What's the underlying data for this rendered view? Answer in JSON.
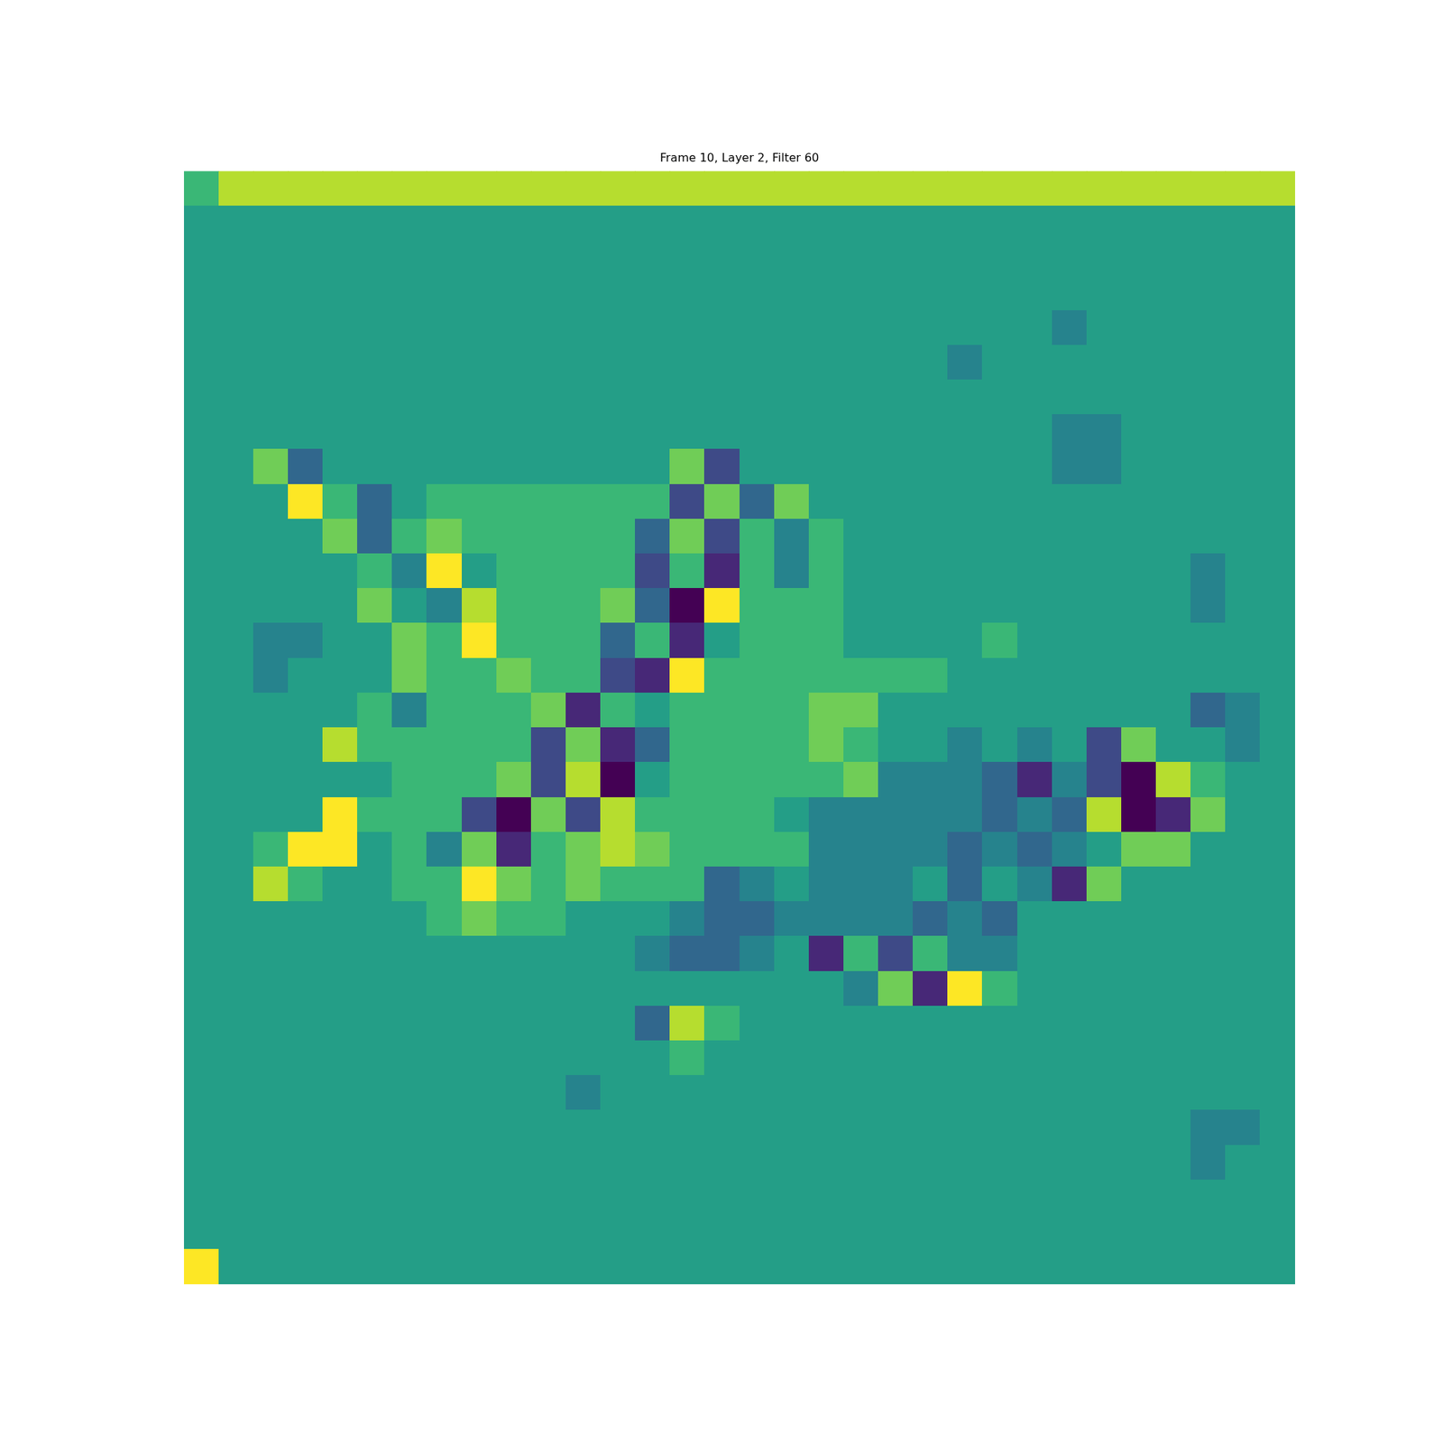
{
  "chart_data": {
    "type": "heatmap",
    "title": "Frame 10, Layer 2, Filter 60",
    "tick_labels": false,
    "grid": false,
    "cells": [
      [
        6,
        8,
        8,
        8,
        8,
        8,
        8,
        8,
        8,
        8,
        8,
        8,
        8,
        8,
        8,
        8,
        8,
        8,
        8,
        8,
        8,
        8,
        8,
        8,
        8,
        8,
        8,
        8,
        8,
        8,
        8,
        8
      ],
      [
        5,
        5,
        5,
        5,
        5,
        5,
        5,
        5,
        5,
        5,
        5,
        5,
        5,
        5,
        5,
        5,
        5,
        5,
        5,
        5,
        5,
        5,
        5,
        5,
        5,
        5,
        5,
        5,
        5,
        5,
        5,
        5
      ],
      [
        5,
        5,
        5,
        5,
        5,
        5,
        5,
        5,
        5,
        5,
        5,
        5,
        5,
        5,
        5,
        5,
        5,
        5,
        5,
        5,
        5,
        5,
        5,
        5,
        5,
        5,
        5,
        5,
        5,
        5,
        5,
        5
      ],
      [
        5,
        5,
        5,
        5,
        5,
        5,
        5,
        5,
        5,
        5,
        5,
        5,
        5,
        5,
        5,
        5,
        5,
        5,
        5,
        5,
        5,
        5,
        5,
        5,
        5,
        5,
        5,
        5,
        5,
        5,
        5,
        5
      ],
      [
        5,
        5,
        5,
        5,
        5,
        5,
        5,
        5,
        5,
        5,
        5,
        5,
        5,
        5,
        5,
        5,
        5,
        5,
        5,
        5,
        5,
        5,
        5,
        5,
        5,
        4,
        5,
        5,
        5,
        5,
        5,
        5
      ],
      [
        5,
        5,
        5,
        5,
        5,
        5,
        5,
        5,
        5,
        5,
        5,
        5,
        5,
        5,
        5,
        5,
        5,
        5,
        5,
        5,
        5,
        5,
        4,
        5,
        5,
        5,
        5,
        5,
        5,
        5,
        5,
        5
      ],
      [
        5,
        5,
        5,
        5,
        5,
        5,
        5,
        5,
        5,
        5,
        5,
        5,
        5,
        5,
        5,
        5,
        5,
        5,
        5,
        5,
        5,
        5,
        5,
        5,
        5,
        5,
        5,
        5,
        5,
        5,
        5,
        5
      ],
      [
        5,
        5,
        5,
        5,
        5,
        5,
        5,
        5,
        5,
        5,
        5,
        5,
        5,
        5,
        5,
        5,
        5,
        5,
        5,
        5,
        5,
        5,
        5,
        5,
        5,
        4,
        4,
        5,
        5,
        5,
        5,
        5
      ],
      [
        5,
        5,
        7,
        3,
        5,
        5,
        5,
        5,
        5,
        5,
        5,
        5,
        5,
        5,
        7,
        2,
        5,
        5,
        5,
        5,
        5,
        5,
        5,
        5,
        5,
        4,
        4,
        5,
        5,
        5,
        5,
        5
      ],
      [
        5,
        5,
        5,
        9,
        6,
        3,
        5,
        6,
        6,
        6,
        6,
        6,
        6,
        6,
        2,
        7,
        3,
        7,
        5,
        5,
        5,
        5,
        5,
        5,
        5,
        5,
        5,
        5,
        5,
        5,
        5,
        5
      ],
      [
        5,
        5,
        5,
        5,
        7,
        3,
        6,
        7,
        6,
        6,
        6,
        6,
        6,
        3,
        7,
        2,
        6,
        4,
        6,
        5,
        5,
        5,
        5,
        5,
        5,
        5,
        5,
        5,
        5,
        5,
        5,
        5
      ],
      [
        5,
        5,
        5,
        5,
        5,
        6,
        4,
        9,
        5,
        6,
        6,
        6,
        6,
        2,
        6,
        1,
        6,
        4,
        6,
        5,
        5,
        5,
        5,
        5,
        5,
        5,
        5,
        5,
        5,
        4,
        5,
        5
      ],
      [
        5,
        5,
        5,
        5,
        5,
        7,
        5,
        4,
        8,
        6,
        6,
        6,
        7,
        3,
        0,
        9,
        6,
        6,
        6,
        5,
        5,
        5,
        5,
        5,
        5,
        5,
        5,
        5,
        5,
        4,
        5,
        5
      ],
      [
        5,
        5,
        4,
        4,
        5,
        5,
        7,
        6,
        9,
        6,
        6,
        6,
        3,
        6,
        1,
        5,
        6,
        6,
        6,
        5,
        5,
        5,
        5,
        6,
        5,
        5,
        5,
        5,
        5,
        5,
        5,
        5
      ],
      [
        5,
        5,
        4,
        5,
        5,
        5,
        7,
        6,
        6,
        7,
        6,
        6,
        2,
        1,
        9,
        6,
        6,
        6,
        6,
        6,
        6,
        6,
        5,
        5,
        5,
        5,
        5,
        5,
        5,
        5,
        5,
        5
      ],
      [
        5,
        5,
        5,
        5,
        5,
        6,
        4,
        6,
        6,
        6,
        7,
        1,
        6,
        5,
        6,
        6,
        6,
        6,
        7,
        7,
        5,
        5,
        5,
        5,
        5,
        5,
        5,
        5,
        5,
        3,
        4,
        5
      ],
      [
        5,
        5,
        5,
        5,
        8,
        6,
        6,
        6,
        6,
        6,
        2,
        7,
        1,
        3,
        6,
        6,
        6,
        6,
        7,
        6,
        5,
        5,
        4,
        5,
        4,
        5,
        2,
        7,
        5,
        5,
        4,
        5
      ],
      [
        5,
        5,
        5,
        5,
        5,
        5,
        6,
        6,
        6,
        7,
        2,
        8,
        0,
        5,
        6,
        6,
        6,
        6,
        6,
        7,
        4,
        4,
        4,
        3,
        1,
        4,
        2,
        0,
        8,
        6,
        5,
        5
      ],
      [
        5,
        5,
        5,
        5,
        9,
        6,
        6,
        6,
        2,
        0,
        7,
        2,
        8,
        6,
        6,
        6,
        6,
        5,
        4,
        4,
        4,
        4,
        4,
        3,
        4,
        3,
        8,
        0,
        1,
        7,
        5,
        5
      ],
      [
        5,
        5,
        6,
        9,
        9,
        5,
        6,
        4,
        7,
        1,
        6,
        7,
        8,
        7,
        6,
        6,
        6,
        6,
        4,
        4,
        4,
        4,
        3,
        4,
        3,
        4,
        5,
        7,
        7,
        5,
        5,
        5
      ],
      [
        5,
        5,
        8,
        6,
        5,
        5,
        6,
        6,
        9,
        7,
        6,
        7,
        6,
        6,
        6,
        3,
        4,
        5,
        4,
        4,
        4,
        5,
        3,
        5,
        4,
        1,
        7,
        5,
        5,
        5,
        5,
        5
      ],
      [
        5,
        5,
        5,
        5,
        5,
        5,
        5,
        6,
        7,
        6,
        6,
        5,
        5,
        5,
        4,
        3,
        3,
        4,
        4,
        4,
        4,
        3,
        4,
        3,
        5,
        5,
        5,
        5,
        5,
        5,
        5,
        5
      ],
      [
        5,
        5,
        5,
        5,
        5,
        5,
        5,
        5,
        5,
        5,
        5,
        5,
        5,
        4,
        3,
        3,
        4,
        5,
        1,
        6,
        2,
        6,
        4,
        4,
        5,
        5,
        5,
        5,
        5,
        5,
        5,
        5
      ],
      [
        5,
        5,
        5,
        5,
        5,
        5,
        5,
        5,
        5,
        5,
        5,
        5,
        5,
        5,
        5,
        5,
        5,
        5,
        5,
        4,
        7,
        1,
        9,
        6,
        5,
        5,
        5,
        5,
        5,
        5,
        5,
        5
      ],
      [
        5,
        5,
        5,
        5,
        5,
        5,
        5,
        5,
        5,
        5,
        5,
        5,
        5,
        3,
        8,
        6,
        5,
        5,
        5,
        5,
        5,
        5,
        5,
        5,
        5,
        5,
        5,
        5,
        5,
        5,
        5,
        5
      ],
      [
        5,
        5,
        5,
        5,
        5,
        5,
        5,
        5,
        5,
        5,
        5,
        5,
        5,
        5,
        6,
        5,
        5,
        5,
        5,
        5,
        5,
        5,
        5,
        5,
        5,
        5,
        5,
        5,
        5,
        5,
        5,
        5
      ],
      [
        5,
        5,
        5,
        5,
        5,
        5,
        5,
        5,
        5,
        5,
        5,
        4,
        5,
        5,
        5,
        5,
        5,
        5,
        5,
        5,
        5,
        5,
        5,
        5,
        5,
        5,
        5,
        5,
        5,
        5,
        5,
        5
      ],
      [
        5,
        5,
        5,
        5,
        5,
        5,
        5,
        5,
        5,
        5,
        5,
        5,
        5,
        5,
        5,
        5,
        5,
        5,
        5,
        5,
        5,
        5,
        5,
        5,
        5,
        5,
        5,
        5,
        5,
        4,
        4,
        5
      ],
      [
        5,
        5,
        5,
        5,
        5,
        5,
        5,
        5,
        5,
        5,
        5,
        5,
        5,
        5,
        5,
        5,
        5,
        5,
        5,
        5,
        5,
        5,
        5,
        5,
        5,
        5,
        5,
        5,
        5,
        4,
        5,
        5
      ],
      [
        5,
        5,
        5,
        5,
        5,
        5,
        5,
        5,
        5,
        5,
        5,
        5,
        5,
        5,
        5,
        5,
        5,
        5,
        5,
        5,
        5,
        5,
        5,
        5,
        5,
        5,
        5,
        5,
        5,
        5,
        5,
        5
      ],
      [
        5,
        5,
        5,
        5,
        5,
        5,
        5,
        5,
        5,
        5,
        5,
        5,
        5,
        5,
        5,
        5,
        5,
        5,
        5,
        5,
        5,
        5,
        5,
        5,
        5,
        5,
        5,
        5,
        5,
        5,
        5,
        5
      ],
      [
        9,
        5,
        5,
        5,
        5,
        5,
        5,
        5,
        5,
        5,
        5,
        5,
        5,
        5,
        5,
        5,
        5,
        5,
        5,
        5,
        5,
        5,
        5,
        5,
        5,
        5,
        5,
        5,
        5,
        5,
        5,
        5
      ]
    ]
  }
}
